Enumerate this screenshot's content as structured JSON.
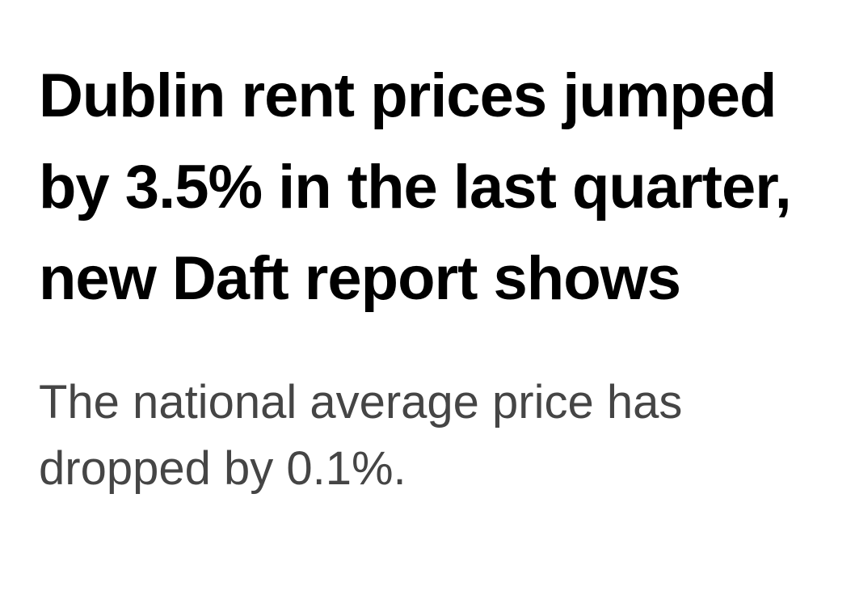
{
  "article": {
    "headline": "Dublin rent prices jumped by 3.5% in the last quarter, new Daft report shows",
    "subheadline": "The national average price has dropped by 0.1%."
  },
  "colors": {
    "background": "#ffffff",
    "headline_text": "#000000",
    "subheadline_text": "#454545"
  }
}
